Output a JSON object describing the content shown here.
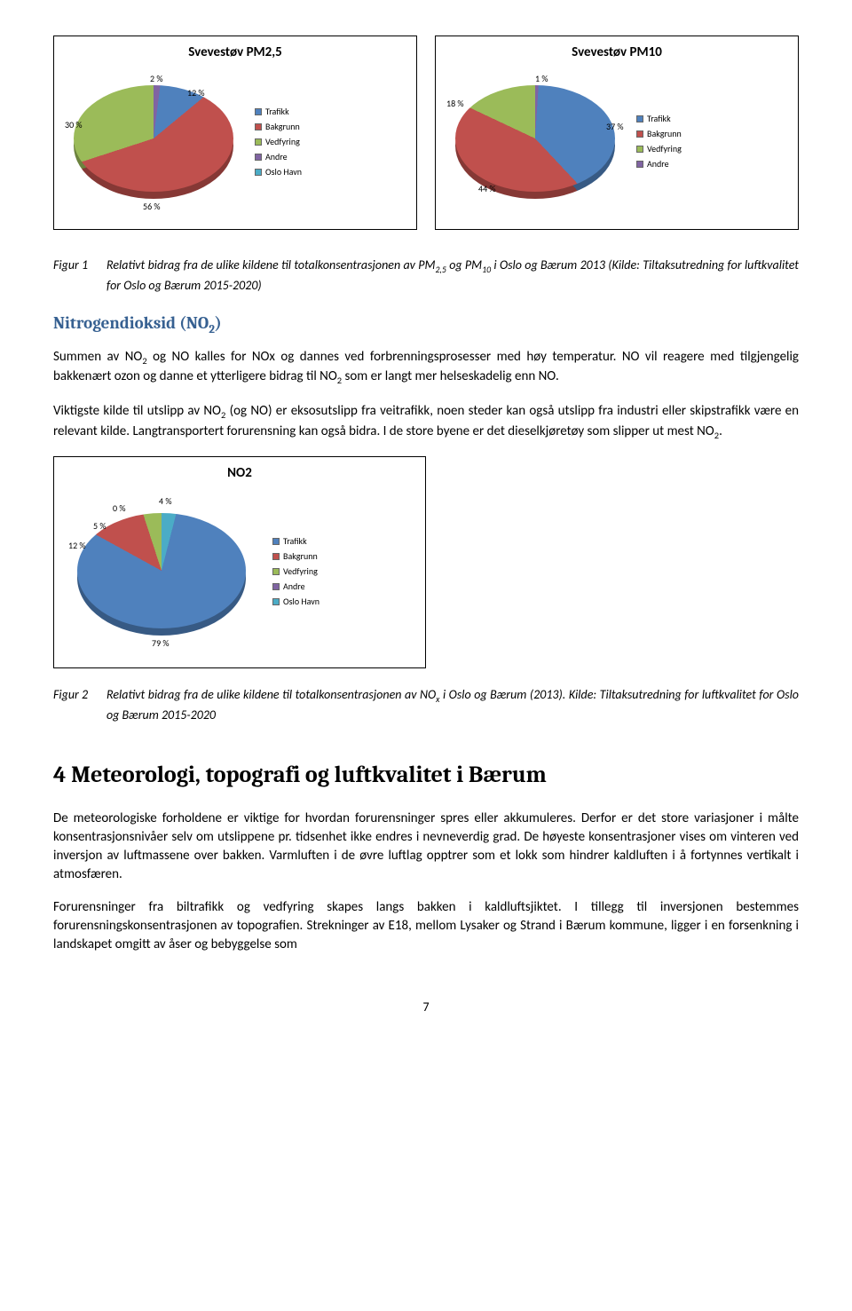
{
  "charts": {
    "pm25": {
      "title": "Svevestøv PM2,5",
      "type": "pie",
      "slices": [
        {
          "label": "Trafikk",
          "value": 12,
          "pct": "12 %",
          "color": "#4f81bd"
        },
        {
          "label": "Bakgrunn",
          "value": 56,
          "pct": "56 %",
          "color": "#c0504d"
        },
        {
          "label": "Vedfyring",
          "value": 30,
          "pct": "30 %",
          "color": "#9bbb59"
        },
        {
          "label": "Andre",
          "value": 2,
          "pct": "2 %",
          "color": "#8064a2"
        },
        {
          "label": "Oslo Havn",
          "value": 0,
          "pct": "",
          "color": "#4bacc6"
        }
      ],
      "legend": [
        "Trafikk",
        "Bakgrunn",
        "Vedfyring",
        "Andre",
        "Oslo Havn"
      ],
      "legend_colors": [
        "#4f81bd",
        "#c0504d",
        "#9bbb59",
        "#8064a2",
        "#4bacc6"
      ]
    },
    "pm10": {
      "title": "Svevestøv PM10",
      "type": "pie",
      "slices": [
        {
          "label": "Trafikk",
          "value": 37,
          "pct": "37 %",
          "color": "#4f81bd"
        },
        {
          "label": "Bakgrunn",
          "value": 44,
          "pct": "44 %",
          "color": "#c0504d"
        },
        {
          "label": "Vedfyring",
          "value": 18,
          "pct": "18 %",
          "color": "#9bbb59"
        },
        {
          "label": "Andre",
          "value": 1,
          "pct": "1 %",
          "color": "#8064a2"
        }
      ],
      "legend": [
        "Trafikk",
        "Bakgrunn",
        "Vedfyring",
        "Andre"
      ],
      "legend_colors": [
        "#4f81bd",
        "#c0504d",
        "#9bbb59",
        "#8064a2"
      ]
    },
    "no2": {
      "title": "NO2",
      "type": "pie",
      "slices": [
        {
          "label": "Trafikk",
          "value": 79,
          "pct": "79 %",
          "color": "#4f81bd"
        },
        {
          "label": "Bakgrunn",
          "value": 12,
          "pct": "12 %",
          "color": "#c0504d"
        },
        {
          "label": "Vedfyring",
          "value": 5,
          "pct": "5 %",
          "color": "#9bbb59"
        },
        {
          "label": "Andre",
          "value": 0,
          "pct": "0 %",
          "color": "#8064a2"
        },
        {
          "label": "Oslo Havn",
          "value": 4,
          "pct": "4 %",
          "color": "#4bacc6"
        }
      ],
      "legend": [
        "Trafikk",
        "Bakgrunn",
        "Vedfyring",
        "Andre",
        "Oslo Havn"
      ],
      "legend_colors": [
        "#4f81bd",
        "#c0504d",
        "#9bbb59",
        "#8064a2",
        "#4bacc6"
      ]
    }
  },
  "captions": {
    "fig1_label": "Figur 1",
    "fig1_text": "Relativt bidrag fra de ulike kildene til totalkonsentrasjonen av PM₂,₅  og PM₁₀ i Oslo og Bærum 2013 (Kilde: Tiltaksutredning for luftkvalitet for Oslo og Bærum 2015-2020)",
    "fig2_label": "Figur 2",
    "fig2_text": "Relativt bidrag fra de ulike kildene til totalkonsentrasjonen av NOₓ i Oslo og Bærum (2013). Kilde: Tiltaksutredning for luftkvalitet for Oslo og Bærum 2015-2020"
  },
  "headings": {
    "no2": "Nitrogendioksid (NO₂)",
    "section4": "4 Meteorologi, topografi og luftkvalitet i Bærum"
  },
  "paragraphs": {
    "p1": "Summen av NO₂ og NO kalles for NOx og dannes ved forbrenningsprosesser med høy temperatur. NO vil reagere med tilgjengelig bakkenært ozon og danne et ytterligere bidrag til NO₂ som er langt mer helseskadelig enn NO.",
    "p2": "Viktigste kilde til utslipp av NO₂ (og NO) er eksosutslipp fra veitrafikk, noen steder kan også utslipp fra industri eller skipstrafikk være en relevant kilde. Langtransportert forurensning kan også bidra. I de store byene er det dieselkjøretøy som slipper ut mest NO₂.",
    "p3": "De meteorologiske forholdene er viktige for hvordan forurensninger spres eller akkumuleres. Derfor er det store variasjoner i målte konsentrasjonsnivåer selv om utslippene pr. tidsenhet ikke endres i nevneverdig grad. De høyeste konsentrasjoner vises om vinteren ved inversjon av luftmassene over bakken. Varmluften i de øvre luftlag opptrer som et lokk som hindrer kaldluften i å fortynnes vertikalt i atmosfæren.",
    "p4": "Forurensninger fra biltrafikk og vedfyring skapes langs bakken i kaldluftsjiktet. I tillegg til inversjonen bestemmes forurensningskonsentrasjonen av topografien. Strekninger av E18, mellom Lysaker og Strand i Bærum kommune, ligger i en forsenkning i landskapet omgitt av åser og bebyggelse som"
  },
  "page_number": "7"
}
